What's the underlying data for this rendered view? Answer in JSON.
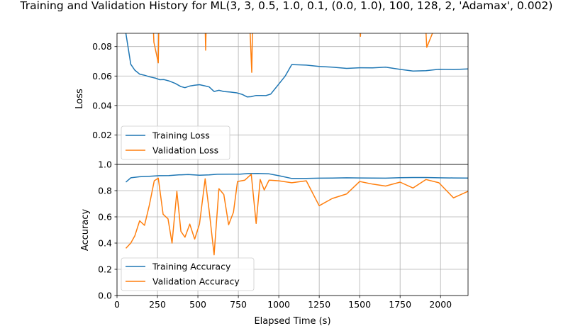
{
  "chart_data": {
    "title": "Training and Validation History for ML(3, 3, 0.5, 1.0, 0.1, (0.0, 1.0), 100, 128, 2, 'Adamax', 0.002)",
    "xlabel": "Elapsed Time (s)",
    "xlim": [
      0,
      2170
    ],
    "xticks": [
      "0",
      "250",
      "500",
      "750",
      "1000",
      "1250",
      "1500",
      "1750",
      "2000"
    ],
    "grid": true,
    "colors": {
      "training": "#1f77b4",
      "validation": "#ff7f0e"
    },
    "panels": [
      {
        "type": "line",
        "ylabel": "Loss",
        "ylim": [
          0.0,
          0.089
        ],
        "yticks": [
          "0.02",
          "0.04",
          "0.06",
          "0.08"
        ],
        "legend_placement": "lower-left",
        "series": [
          {
            "name": "Training Loss",
            "points": [
              [
                55,
                0.089
              ],
              [
                85,
                0.068
              ],
              [
                110,
                0.064
              ],
              [
                140,
                0.0613
              ],
              [
                170,
                0.0605
              ],
              [
                200,
                0.0595
              ],
              [
                240,
                0.0585
              ],
              [
                265,
                0.0575
              ],
              [
                290,
                0.0576
              ],
              [
                320,
                0.0567
              ],
              [
                360,
                0.055
              ],
              [
                395,
                0.0528
              ],
              [
                420,
                0.0521
              ],
              [
                450,
                0.0532
              ],
              [
                480,
                0.0538
              ],
              [
                510,
                0.0541
              ],
              [
                540,
                0.0534
              ],
              [
                570,
                0.0526
              ],
              [
                600,
                0.0495
              ],
              [
                630,
                0.0503
              ],
              [
                660,
                0.0495
              ],
              [
                700,
                0.0491
              ],
              [
                740,
                0.0486
              ],
              [
                775,
                0.0475
              ],
              [
                805,
                0.0458
              ],
              [
                830,
                0.046
              ],
              [
                860,
                0.0468
              ],
              [
                890,
                0.0468
              ],
              [
                920,
                0.0467
              ],
              [
                950,
                0.0477
              ],
              [
                1000,
                0.0545
              ],
              [
                1040,
                0.06
              ],
              [
                1080,
                0.0678
              ],
              [
                1170,
                0.0674
              ],
              [
                1250,
                0.0665
              ],
              [
                1330,
                0.066
              ],
              [
                1420,
                0.0652
              ],
              [
                1500,
                0.0656
              ],
              [
                1580,
                0.0655
              ],
              [
                1660,
                0.066
              ],
              [
                1750,
                0.0645
              ],
              [
                1830,
                0.0634
              ],
              [
                1910,
                0.0636
              ],
              [
                1990,
                0.0646
              ],
              [
                2080,
                0.0644
              ],
              [
                2170,
                0.0648
              ]
            ]
          },
          {
            "name": "Validation Loss",
            "points": [
              [
                215,
                0.12
              ],
              [
                228,
                0.083
              ],
              [
                255,
                0.069
              ],
              [
                262,
                0.12
              ],
              [
                540,
                0.12
              ],
              [
                548,
                0.0775
              ],
              [
                556,
                0.12
              ],
              [
                815,
                0.12
              ],
              [
                823,
                0.09
              ],
              [
                833,
                0.0625
              ],
              [
                842,
                0.12
              ],
              [
                1500,
                0.12
              ],
              [
                1505,
                0.087
              ],
              [
                1513,
                0.12
              ],
              [
                1895,
                0.12
              ],
              [
                1915,
                0.0795
              ],
              [
                1950,
                0.089
              ],
              [
                1975,
                0.12
              ]
            ]
          }
        ]
      },
      {
        "type": "line",
        "ylabel": "Accuracy",
        "ylim": [
          0.0,
          1.0
        ],
        "yticks": [
          "0.0",
          "0.2",
          "0.4",
          "0.6",
          "0.8",
          "1.0"
        ],
        "legend_placement": "lower-left",
        "series": [
          {
            "name": "Training Accuracy",
            "points": [
              [
                55,
                0.865
              ],
              [
                85,
                0.898
              ],
              [
                140,
                0.906
              ],
              [
                200,
                0.909
              ],
              [
                260,
                0.914
              ],
              [
                320,
                0.915
              ],
              [
                380,
                0.92
              ],
              [
                440,
                0.923
              ],
              [
                510,
                0.918
              ],
              [
                570,
                0.92
              ],
              [
                620,
                0.925
              ],
              [
                700,
                0.926
              ],
              [
                760,
                0.926
              ],
              [
                810,
                0.93
              ],
              [
                870,
                0.931
              ],
              [
                940,
                0.928
              ],
              [
                1000,
                0.914
              ],
              [
                1080,
                0.893
              ],
              [
                1170,
                0.893
              ],
              [
                1250,
                0.895
              ],
              [
                1330,
                0.896
              ],
              [
                1420,
                0.898
              ],
              [
                1500,
                0.897
              ],
              [
                1580,
                0.896
              ],
              [
                1660,
                0.895
              ],
              [
                1750,
                0.899
              ],
              [
                1830,
                0.9
              ],
              [
                1910,
                0.9
              ],
              [
                1990,
                0.898
              ],
              [
                2080,
                0.897
              ],
              [
                2170,
                0.896
              ]
            ]
          },
          {
            "name": "Validation Accuracy",
            "points": [
              [
                55,
                0.36
              ],
              [
                85,
                0.4
              ],
              [
                110,
                0.455
              ],
              [
                140,
                0.57
              ],
              [
                170,
                0.535
              ],
              [
                200,
                0.69
              ],
              [
                230,
                0.875
              ],
              [
                255,
                0.895
              ],
              [
                285,
                0.62
              ],
              [
                315,
                0.585
              ],
              [
                340,
                0.4
              ],
              [
                370,
                0.795
              ],
              [
                395,
                0.49
              ],
              [
                420,
                0.445
              ],
              [
                450,
                0.545
              ],
              [
                480,
                0.43
              ],
              [
                510,
                0.545
              ],
              [
                545,
                0.89
              ],
              [
                570,
                0.645
              ],
              [
                600,
                0.31
              ],
              [
                630,
                0.815
              ],
              [
                660,
                0.77
              ],
              [
                690,
                0.54
              ],
              [
                720,
                0.635
              ],
              [
                745,
                0.87
              ],
              [
                790,
                0.88
              ],
              [
                830,
                0.925
              ],
              [
                860,
                0.55
              ],
              [
                885,
                0.885
              ],
              [
                910,
                0.805
              ],
              [
                940,
                0.88
              ],
              [
                1000,
                0.875
              ],
              [
                1080,
                0.86
              ],
              [
                1170,
                0.875
              ],
              [
                1250,
                0.685
              ],
              [
                1330,
                0.74
              ],
              [
                1420,
                0.775
              ],
              [
                1500,
                0.87
              ],
              [
                1580,
                0.85
              ],
              [
                1660,
                0.835
              ],
              [
                1750,
                0.865
              ],
              [
                1830,
                0.82
              ],
              [
                1910,
                0.885
              ],
              [
                1990,
                0.86
              ],
              [
                2080,
                0.745
              ],
              [
                2170,
                0.795
              ]
            ]
          }
        ]
      }
    ]
  }
}
